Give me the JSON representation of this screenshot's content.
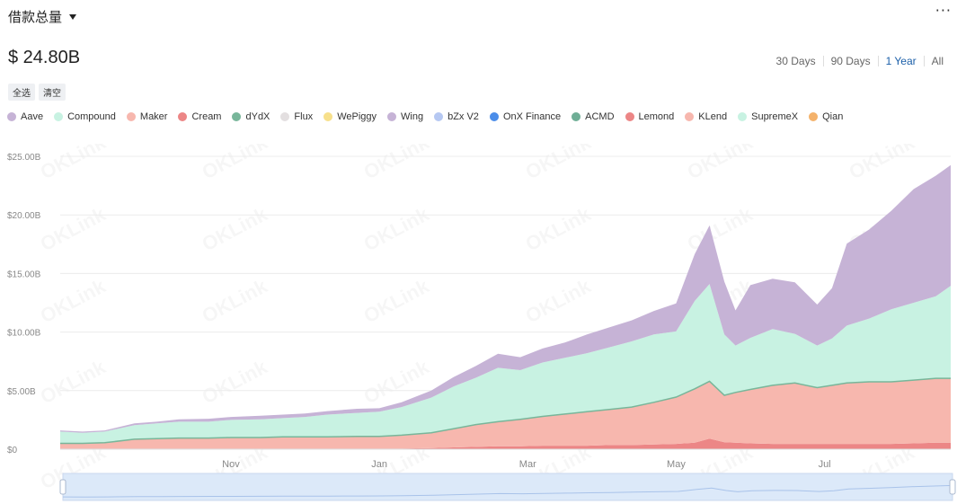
{
  "header": {
    "title": "借款总量",
    "more_icon": "more-dots-icon",
    "total": "$ 24.80B"
  },
  "ranges": [
    {
      "label": "30 Days",
      "active": false
    },
    {
      "label": "90 Days",
      "active": false
    },
    {
      "label": "1 Year",
      "active": true
    },
    {
      "label": "All",
      "active": false
    }
  ],
  "buttons": {
    "select_all": "全选",
    "clear": "清空"
  },
  "legend": [
    {
      "name": "Aave",
      "color": "#c6b3d6"
    },
    {
      "name": "Compound",
      "color": "#c8f2e2"
    },
    {
      "name": "Maker",
      "color": "#f7b7ae"
    },
    {
      "name": "Cream",
      "color": "#ec8686"
    },
    {
      "name": "dYdX",
      "color": "#78b69a"
    },
    {
      "name": "Flux",
      "color": "#e3dfe0"
    },
    {
      "name": "WePiggy",
      "color": "#f7e08b"
    },
    {
      "name": "Wing",
      "color": "#c6b3d6"
    },
    {
      "name": "bZx V2",
      "color": "#b6c8f2"
    },
    {
      "name": "OnX Finance",
      "color": "#4b8de9"
    },
    {
      "name": "ACMD",
      "color": "#6fae96"
    },
    {
      "name": "Lemond",
      "color": "#ec8686"
    },
    {
      "name": "KLend",
      "color": "#f7b7ae"
    },
    {
      "name": "SupremeX",
      "color": "#c8f2e2"
    },
    {
      "name": "Qian",
      "color": "#f4b26b"
    }
  ],
  "watermark": "OKLink",
  "chart_data": {
    "type": "area",
    "stacked": true,
    "yticks": [
      "$0",
      "$5.00B",
      "$10.00B",
      "$15.00B",
      "$20.00B",
      "$25.00B"
    ],
    "ylim": [
      0,
      25
    ],
    "xticks": [
      "Nov",
      "Jan",
      "Mar",
      "May",
      "Jul"
    ],
    "xtick_positions": [
      2.3,
      4.3,
      6.3,
      8.3,
      10.3
    ],
    "xlim": [
      0,
      12
    ],
    "grid": true,
    "legend_position": "top",
    "x": [
      0,
      0.3,
      0.6,
      1.0,
      1.3,
      1.6,
      2.0,
      2.3,
      2.7,
      3.0,
      3.3,
      3.6,
      4.0,
      4.3,
      4.6,
      5.0,
      5.3,
      5.6,
      5.9,
      6.2,
      6.5,
      6.8,
      7.1,
      7.4,
      7.7,
      8.0,
      8.3,
      8.55,
      8.75,
      8.95,
      9.1,
      9.3,
      9.6,
      9.9,
      10.2,
      10.4,
      10.6,
      10.9,
      11.2,
      11.5,
      11.8,
      12.0
    ],
    "series": [
      {
        "name": "Cream",
        "color": "#ec8686",
        "values": [
          0.05,
          0.05,
          0.05,
          0.05,
          0.05,
          0.05,
          0.05,
          0.05,
          0.05,
          0.05,
          0.05,
          0.05,
          0.05,
          0.05,
          0.05,
          0.1,
          0.15,
          0.2,
          0.25,
          0.25,
          0.3,
          0.3,
          0.3,
          0.35,
          0.35,
          0.4,
          0.45,
          0.55,
          0.9,
          0.6,
          0.55,
          0.5,
          0.45,
          0.45,
          0.45,
          0.45,
          0.45,
          0.45,
          0.45,
          0.5,
          0.55,
          0.55
        ]
      },
      {
        "name": "Maker",
        "color": "#f7b7ae",
        "values": [
          0.45,
          0.45,
          0.5,
          0.8,
          0.85,
          0.9,
          0.9,
          0.95,
          0.95,
          1.0,
          1.0,
          1.0,
          1.05,
          1.05,
          1.15,
          1.3,
          1.6,
          1.9,
          2.1,
          2.3,
          2.5,
          2.7,
          2.9,
          3.05,
          3.25,
          3.6,
          4.0,
          4.6,
          4.9,
          4.0,
          4.3,
          4.6,
          5.0,
          5.2,
          4.8,
          5.0,
          5.2,
          5.3,
          5.3,
          5.4,
          5.5,
          5.5
        ]
      },
      {
        "name": "Compound",
        "color": "#c8f2e2",
        "values": [
          1.0,
          0.9,
          0.95,
          1.2,
          1.3,
          1.4,
          1.4,
          1.5,
          1.55,
          1.6,
          1.7,
          1.9,
          2.0,
          2.1,
          2.4,
          3.0,
          3.6,
          4.0,
          4.6,
          4.2,
          4.6,
          4.8,
          5.0,
          5.3,
          5.6,
          5.8,
          5.6,
          7.5,
          8.3,
          5.2,
          4.0,
          4.4,
          4.8,
          4.2,
          3.6,
          4.0,
          4.9,
          5.4,
          6.2,
          6.6,
          7.0,
          7.9
        ]
      },
      {
        "name": "Aave",
        "color": "#c6b3d6",
        "values": [
          0.1,
          0.1,
          0.1,
          0.15,
          0.15,
          0.2,
          0.25,
          0.25,
          0.3,
          0.3,
          0.3,
          0.3,
          0.35,
          0.3,
          0.4,
          0.6,
          0.8,
          1.0,
          1.2,
          1.1,
          1.2,
          1.3,
          1.6,
          1.7,
          1.8,
          2.0,
          2.4,
          4.0,
          5.0,
          4.5,
          3.0,
          4.5,
          4.3,
          4.4,
          3.5,
          4.3,
          7.0,
          7.6,
          8.4,
          9.7,
          10.3,
          10.3
        ]
      }
    ]
  }
}
